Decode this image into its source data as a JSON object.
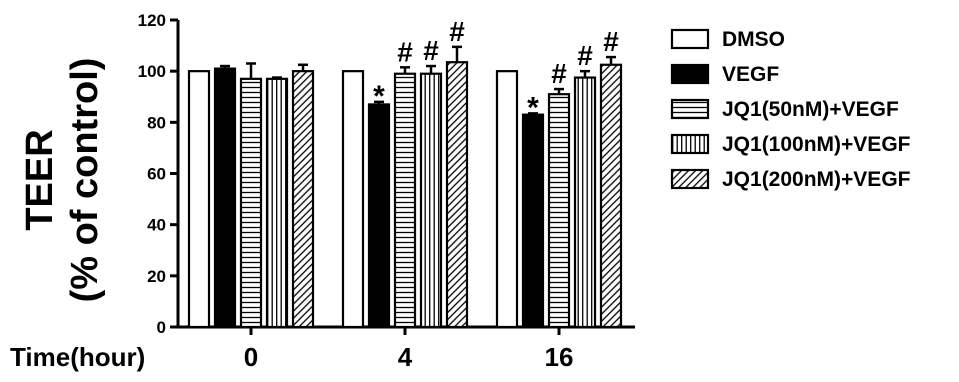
{
  "chart_data": {
    "type": "bar",
    "title": "",
    "ylabel_line1": "TEER",
    "ylabel_line2": "(% of control)",
    "xlabel": "Time(hour)",
    "categories": [
      "0",
      "4",
      "16"
    ],
    "ylim": [
      0,
      120
    ],
    "yticks": [
      0,
      20,
      40,
      60,
      80,
      100,
      120
    ],
    "grid": false,
    "legend_position": "right",
    "series": [
      {
        "name": "DMSO",
        "fill": "white",
        "values": [
          100,
          100,
          100
        ],
        "errors": [
          0,
          0,
          0
        ],
        "markers": [
          "",
          "",
          ""
        ]
      },
      {
        "name": "VEGF",
        "fill": "black",
        "values": [
          101,
          87,
          83
        ],
        "errors": [
          1,
          1,
          0.5
        ],
        "markers": [
          "",
          "*",
          "*"
        ]
      },
      {
        "name": "JQ1(50nM)+VEGF",
        "fill": "horizontal",
        "values": [
          97,
          99,
          91
        ],
        "errors": [
          6,
          2.5,
          2
        ],
        "markers": [
          "",
          "#",
          "#"
        ]
      },
      {
        "name": "JQ1(100nM)+VEGF",
        "fill": "vertical",
        "values": [
          97,
          99,
          97.5
        ],
        "errors": [
          0.5,
          3,
          2.5
        ],
        "markers": [
          "",
          "#",
          "#"
        ]
      },
      {
        "name": "JQ1(200nM)+VEGF",
        "fill": "diagonal",
        "values": [
          100,
          103.5,
          102.5
        ],
        "errors": [
          2.5,
          6,
          3
        ],
        "markers": [
          "",
          "#",
          "#"
        ]
      }
    ]
  }
}
